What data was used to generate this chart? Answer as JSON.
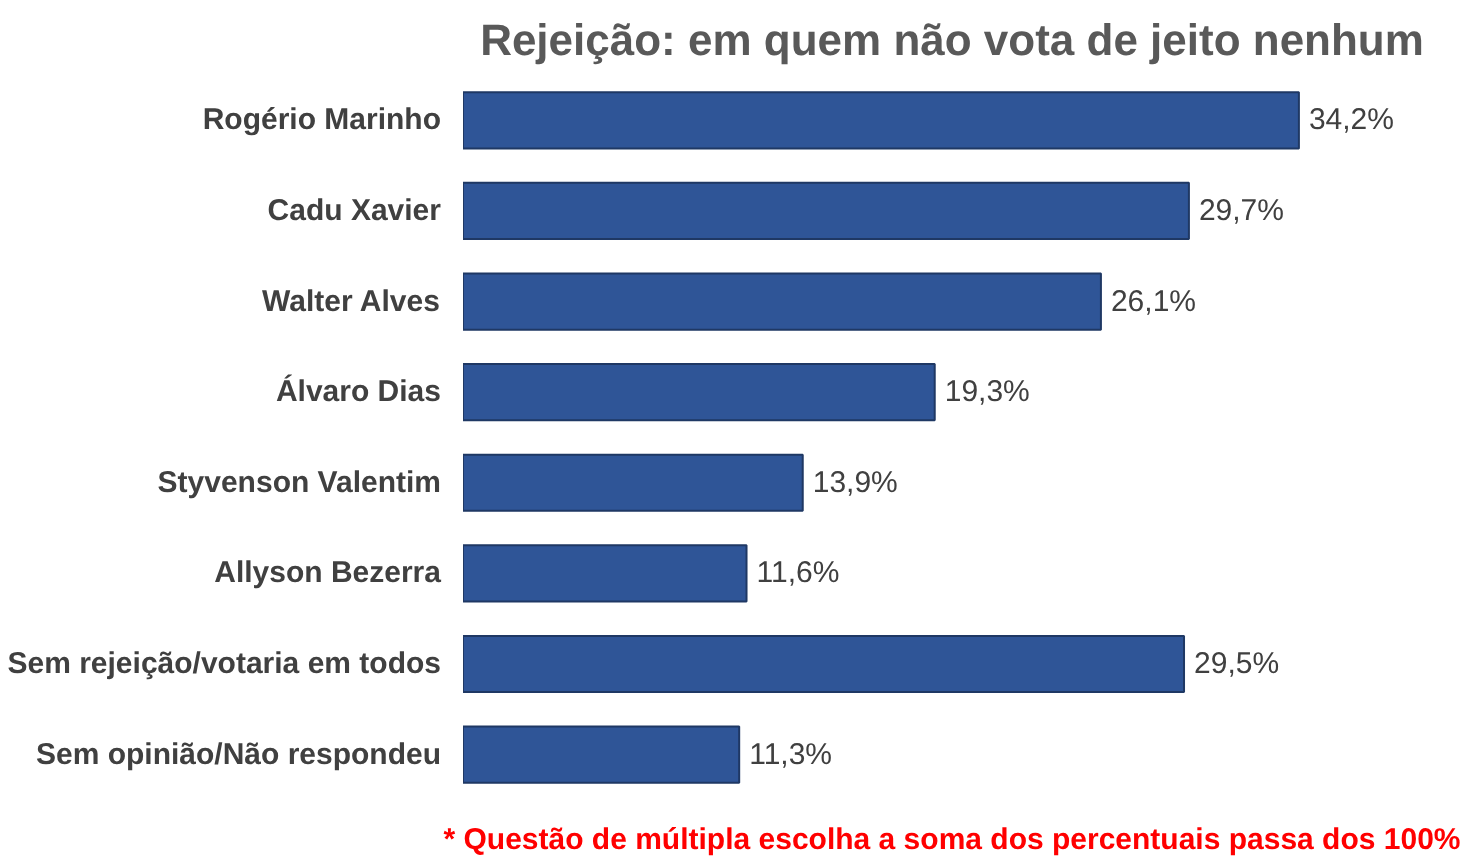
{
  "chart_data": {
    "type": "bar",
    "orientation": "horizontal",
    "title": "Rejeição: em quem não vota de jeito nenhum",
    "categories": [
      "Rogério Marinho",
      "Cadu Xavier",
      "Walter Alves",
      "Álvaro Dias",
      "Styvenson Valentim",
      "Allyson Bezerra",
      "Sem rejeição/votaria em todos",
      "Sem opinião/Não respondeu"
    ],
    "values": [
      34.2,
      29.7,
      26.1,
      19.3,
      13.9,
      11.6,
      29.5,
      11.3
    ],
    "value_labels": [
      "34,2%",
      "29,7%",
      "26,1%",
      "19,3%",
      "13,9%",
      "11,6%",
      "29,5%",
      "11,3%"
    ],
    "color": "#2f5597",
    "grid": false,
    "annotations": [
      "* Questão de múltipla escolha a soma dos percentuais passa dos 100%"
    ]
  }
}
